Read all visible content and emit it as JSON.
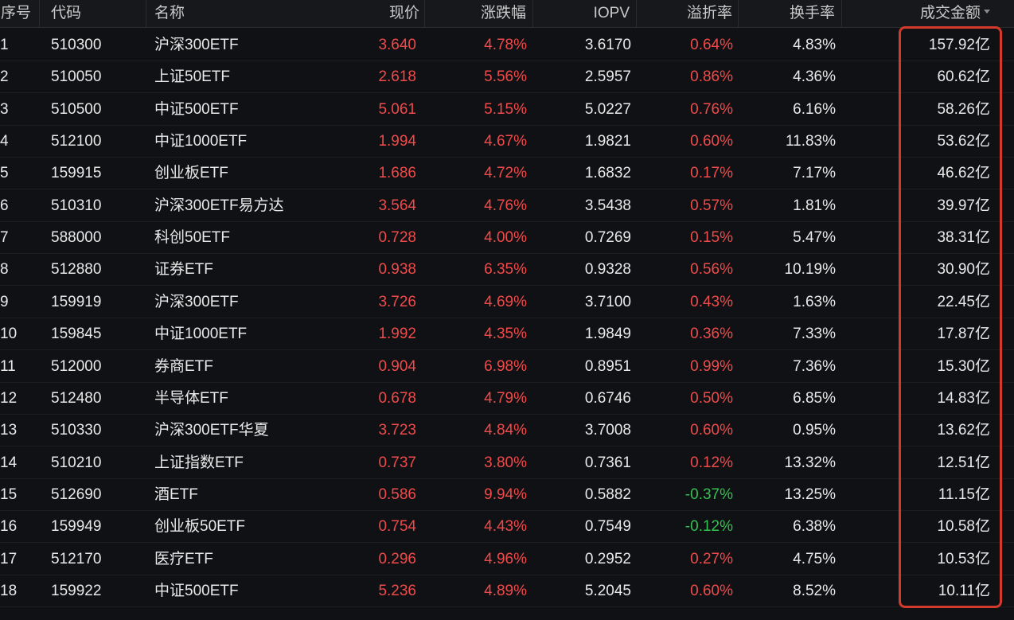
{
  "header": {
    "idx": "序号",
    "code": "代码",
    "name": "名称",
    "price": "现价",
    "change": "涨跌幅",
    "iopv": "IOPV",
    "premium": "溢折率",
    "turnover": "换手率",
    "amount": "成交金额"
  },
  "colors": {
    "up": "#f04a4a",
    "down": "#33c24f",
    "highlight": "#d33a2c"
  },
  "rows": [
    {
      "idx": "1",
      "code": "510300",
      "name": "沪深300ETF",
      "price": "3.640",
      "change": "4.78%",
      "iopv": "3.6170",
      "premium": "0.64%",
      "turnover": "4.83%",
      "amount": "157.92亿"
    },
    {
      "idx": "2",
      "code": "510050",
      "name": "上证50ETF",
      "price": "2.618",
      "change": "5.56%",
      "iopv": "2.5957",
      "premium": "0.86%",
      "turnover": "4.36%",
      "amount": "60.62亿"
    },
    {
      "idx": "3",
      "code": "510500",
      "name": "中证500ETF",
      "price": "5.061",
      "change": "5.15%",
      "iopv": "5.0227",
      "premium": "0.76%",
      "turnover": "6.16%",
      "amount": "58.26亿"
    },
    {
      "idx": "4",
      "code": "512100",
      "name": "中证1000ETF",
      "price": "1.994",
      "change": "4.67%",
      "iopv": "1.9821",
      "premium": "0.60%",
      "turnover": "11.83%",
      "amount": "53.62亿"
    },
    {
      "idx": "5",
      "code": "159915",
      "name": "创业板ETF",
      "price": "1.686",
      "change": "4.72%",
      "iopv": "1.6832",
      "premium": "0.17%",
      "turnover": "7.17%",
      "amount": "46.62亿"
    },
    {
      "idx": "6",
      "code": "510310",
      "name": "沪深300ETF易方达",
      "price": "3.564",
      "change": "4.76%",
      "iopv": "3.5438",
      "premium": "0.57%",
      "turnover": "1.81%",
      "amount": "39.97亿"
    },
    {
      "idx": "7",
      "code": "588000",
      "name": "科创50ETF",
      "price": "0.728",
      "change": "4.00%",
      "iopv": "0.7269",
      "premium": "0.15%",
      "turnover": "5.47%",
      "amount": "38.31亿"
    },
    {
      "idx": "8",
      "code": "512880",
      "name": "证券ETF",
      "price": "0.938",
      "change": "6.35%",
      "iopv": "0.9328",
      "premium": "0.56%",
      "turnover": "10.19%",
      "amount": "30.90亿"
    },
    {
      "idx": "9",
      "code": "159919",
      "name": "沪深300ETF",
      "price": "3.726",
      "change": "4.69%",
      "iopv": "3.7100",
      "premium": "0.43%",
      "turnover": "1.63%",
      "amount": "22.45亿"
    },
    {
      "idx": "10",
      "code": "159845",
      "name": "中证1000ETF",
      "price": "1.992",
      "change": "4.35%",
      "iopv": "1.9849",
      "premium": "0.36%",
      "turnover": "7.33%",
      "amount": "17.87亿"
    },
    {
      "idx": "11",
      "code": "512000",
      "name": "券商ETF",
      "price": "0.904",
      "change": "6.98%",
      "iopv": "0.8951",
      "premium": "0.99%",
      "turnover": "7.36%",
      "amount": "15.30亿"
    },
    {
      "idx": "12",
      "code": "512480",
      "name": "半导体ETF",
      "price": "0.678",
      "change": "4.79%",
      "iopv": "0.6746",
      "premium": "0.50%",
      "turnover": "6.85%",
      "amount": "14.83亿"
    },
    {
      "idx": "13",
      "code": "510330",
      "name": "沪深300ETF华夏",
      "price": "3.723",
      "change": "4.84%",
      "iopv": "3.7008",
      "premium": "0.60%",
      "turnover": "0.95%",
      "amount": "13.62亿"
    },
    {
      "idx": "14",
      "code": "510210",
      "name": "上证指数ETF",
      "price": "0.737",
      "change": "3.80%",
      "iopv": "0.7361",
      "premium": "0.12%",
      "turnover": "13.32%",
      "amount": "12.51亿"
    },
    {
      "idx": "15",
      "code": "512690",
      "name": "酒ETF",
      "price": "0.586",
      "change": "9.94%",
      "iopv": "0.5882",
      "premium": "-0.37%",
      "turnover": "13.25%",
      "amount": "11.15亿"
    },
    {
      "idx": "16",
      "code": "159949",
      "name": "创业板50ETF",
      "price": "0.754",
      "change": "4.43%",
      "iopv": "0.7549",
      "premium": "-0.12%",
      "turnover": "6.38%",
      "amount": "10.58亿"
    },
    {
      "idx": "17",
      "code": "512170",
      "name": "医疗ETF",
      "price": "0.296",
      "change": "4.96%",
      "iopv": "0.2952",
      "premium": "0.27%",
      "turnover": "4.75%",
      "amount": "10.53亿"
    },
    {
      "idx": "18",
      "code": "159922",
      "name": "中证500ETF",
      "price": "5.236",
      "change": "4.89%",
      "iopv": "5.2045",
      "premium": "0.60%",
      "turnover": "8.52%",
      "amount": "10.11亿"
    }
  ]
}
